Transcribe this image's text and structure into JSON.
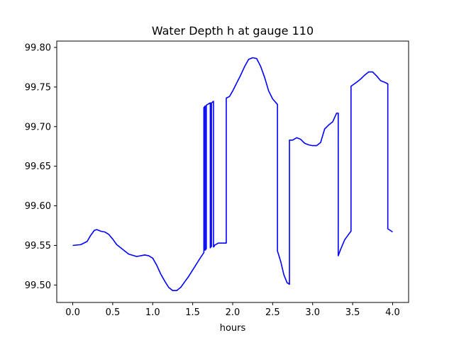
{
  "chart_data": {
    "type": "line",
    "title": "Water Depth h at gauge 110",
    "xlabel": "hours",
    "ylabel": "",
    "xlim": [
      -0.2,
      4.2
    ],
    "ylim": [
      99.478,
      99.808
    ],
    "xticks": [
      0.0,
      0.5,
      1.0,
      1.5,
      2.0,
      2.5,
      3.0,
      3.5,
      4.0
    ],
    "xtick_labels": [
      "0.0",
      "0.5",
      "1.0",
      "1.5",
      "2.0",
      "2.5",
      "3.0",
      "3.5",
      "4.0"
    ],
    "yticks": [
      99.5,
      99.55,
      99.6,
      99.65,
      99.7,
      99.75,
      99.8
    ],
    "ytick_labels": [
      "99.50",
      "99.55",
      "99.60",
      "99.65",
      "99.70",
      "99.75",
      "99.80"
    ],
    "grid": false,
    "series": [
      {
        "color": "#0000ff",
        "x": [
          0.0,
          0.1,
          0.18,
          0.22,
          0.27,
          0.3,
          0.35,
          0.4,
          0.45,
          0.5,
          0.55,
          0.6,
          0.7,
          0.8,
          0.9,
          0.95,
          1.0,
          1.05,
          1.1,
          1.15,
          1.2,
          1.25,
          1.3,
          1.35,
          1.4,
          1.45,
          1.5,
          1.55,
          1.6,
          1.64,
          1.64,
          1.655,
          1.655,
          1.67,
          1.67,
          1.72,
          1.72,
          1.735,
          1.735,
          1.76,
          1.76,
          1.77,
          1.77,
          1.82,
          1.86,
          1.92,
          1.92,
          1.96,
          2.0,
          2.05,
          2.1,
          2.15,
          2.2,
          2.25,
          2.3,
          2.35,
          2.4,
          2.45,
          2.5,
          2.56,
          2.56,
          2.6,
          2.64,
          2.68,
          2.71,
          2.71,
          2.75,
          2.8,
          2.85,
          2.9,
          2.95,
          3.0,
          3.05,
          3.1,
          3.15,
          3.2,
          3.25,
          3.3,
          3.32,
          3.32,
          3.35,
          3.4,
          3.45,
          3.48,
          3.48,
          3.55,
          3.6,
          3.65,
          3.7,
          3.75,
          3.8,
          3.85,
          3.9,
          3.94,
          3.94,
          4.0
        ],
        "y": [
          99.55,
          99.551,
          99.555,
          99.562,
          99.569,
          99.57,
          99.568,
          99.567,
          99.564,
          99.558,
          99.551,
          99.547,
          99.539,
          99.536,
          99.538,
          99.537,
          99.534,
          99.525,
          99.514,
          99.505,
          99.497,
          99.493,
          99.493,
          99.497,
          99.504,
          99.511,
          99.519,
          99.527,
          99.535,
          99.541,
          99.724,
          99.726,
          99.544,
          99.546,
          99.727,
          99.73,
          99.547,
          99.549,
          99.73,
          99.732,
          99.548,
          99.549,
          99.55,
          99.553,
          99.553,
          99.553,
          99.736,
          99.738,
          99.745,
          99.755,
          99.765,
          99.776,
          99.785,
          99.787,
          99.786,
          99.776,
          99.762,
          99.745,
          99.735,
          99.728,
          99.543,
          99.53,
          99.513,
          99.503,
          99.501,
          99.683,
          99.683,
          99.686,
          99.684,
          99.679,
          99.677,
          99.676,
          99.676,
          99.68,
          99.697,
          99.702,
          99.706,
          99.717,
          99.717,
          99.537,
          99.545,
          99.557,
          99.564,
          99.568,
          99.751,
          99.756,
          99.76,
          99.765,
          99.769,
          99.769,
          99.764,
          99.758,
          99.756,
          99.754,
          99.571,
          99.567
        ]
      }
    ]
  }
}
